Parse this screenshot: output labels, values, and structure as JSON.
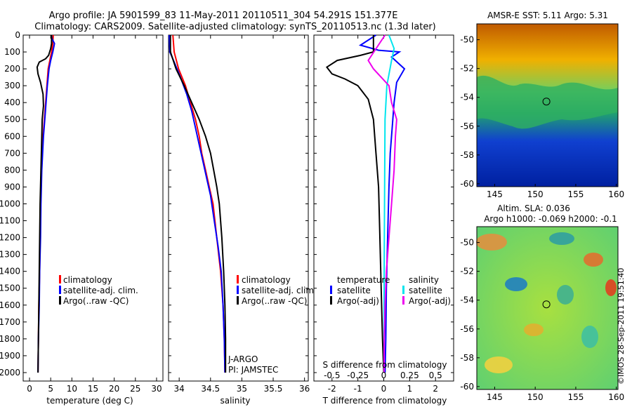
{
  "header": {
    "line1": "Argo profile: JA 5901599_83 11-May-2011 20110511_304 54.291S 151.377E",
    "line2": "Climatology: CARS2009. Satellite-adjusted climatology: synTS_20110513.nc (1.3d later)"
  },
  "colors": {
    "climatology": "#ff0000",
    "satellite": "#0000ff",
    "argo": "#000000",
    "salinity_sat": "#00e5ee",
    "salinity_argo": "#ee00ee"
  },
  "chart_data": [
    {
      "type": "line",
      "xlabel": "temperature (deg C)",
      "xticks": [
        0,
        5,
        10,
        15,
        20,
        25,
        30
      ],
      "xlim": [
        -1.5,
        31.5
      ],
      "ylim": [
        0,
        2050
      ],
      "yticks": [
        0,
        100,
        200,
        300,
        400,
        500,
        600,
        700,
        800,
        900,
        1000,
        1100,
        1200,
        1300,
        1400,
        1500,
        1600,
        1700,
        1800,
        1900,
        2000
      ],
      "legend": [
        "climatology",
        "satellite-adj. clim.",
        "Argo(..raw -QC)"
      ],
      "series": [
        {
          "name": "climatology",
          "color": "red",
          "points": [
            [
              5.6,
              0
            ],
            [
              5.5,
              50
            ],
            [
              5.2,
              100
            ],
            [
              4.8,
              150
            ],
            [
              4.4,
              200
            ],
            [
              4.1,
              300
            ],
            [
              3.8,
              400
            ],
            [
              3.5,
              500
            ],
            [
              3.2,
              600
            ],
            [
              3.0,
              700
            ],
            [
              2.8,
              800
            ],
            [
              2.7,
              900
            ],
            [
              2.6,
              1000
            ],
            [
              2.5,
              1200
            ],
            [
              2.4,
              1400
            ],
            [
              2.2,
              1600
            ],
            [
              2.1,
              1800
            ],
            [
              2.0,
              2000
            ]
          ]
        },
        {
          "name": "satellite-adj. clim.",
          "color": "blue",
          "points": [
            [
              5.2,
              0
            ],
            [
              5.3,
              20
            ],
            [
              5.9,
              50
            ],
            [
              5.5,
              100
            ],
            [
              5.0,
              150
            ],
            [
              4.6,
              200
            ],
            [
              4.2,
              300
            ],
            [
              3.9,
              400
            ],
            [
              3.6,
              500
            ],
            [
              3.3,
              600
            ],
            [
              3.1,
              700
            ],
            [
              2.9,
              800
            ],
            [
              2.8,
              900
            ],
            [
              2.7,
              1000
            ],
            [
              2.6,
              1200
            ],
            [
              2.4,
              1400
            ],
            [
              2.3,
              1600
            ],
            [
              2.1,
              1800
            ],
            [
              2.0,
              2000
            ]
          ]
        },
        {
          "name": "Argo(..raw -QC)",
          "color": "black",
          "points": [
            [
              5.2,
              0
            ],
            [
              5.2,
              50
            ],
            [
              5.0,
              80
            ],
            [
              4.5,
              120
            ],
            [
              3.8,
              140
            ],
            [
              2.3,
              160
            ],
            [
              1.8,
              190
            ],
            [
              2.0,
              230
            ],
            [
              2.6,
              280
            ],
            [
              3.2,
              350
            ],
            [
              3.3,
              420
            ],
            [
              3.0,
              500
            ],
            [
              2.9,
              600
            ],
            [
              2.8,
              700
            ],
            [
              2.7,
              800
            ],
            [
              2.6,
              900
            ],
            [
              2.5,
              1000
            ],
            [
              2.4,
              1200
            ],
            [
              2.3,
              1400
            ],
            [
              2.2,
              1600
            ],
            [
              2.1,
              1800
            ],
            [
              2.0,
              2000
            ]
          ]
        }
      ]
    },
    {
      "type": "line",
      "xlabel": "salinity",
      "xticks": [
        34,
        34.5,
        35,
        35.5,
        36
      ],
      "xlim": [
        33.83,
        36.06
      ],
      "ylim": [
        0,
        2050
      ],
      "legend": [
        "climatology",
        "satellite-adj. clim.",
        "Argo(..raw -QC)"
      ],
      "annotations": [
        "J-ARGO",
        "PI: JAMSTEC"
      ],
      "series": [
        {
          "name": "climatology",
          "color": "red",
          "points": [
            [
              33.9,
              0
            ],
            [
              33.92,
              100
            ],
            [
              33.99,
              200
            ],
            [
              34.1,
              300
            ],
            [
              34.18,
              400
            ],
            [
              34.26,
              500
            ],
            [
              34.32,
              600
            ],
            [
              34.36,
              700
            ],
            [
              34.42,
              800
            ],
            [
              34.48,
              900
            ],
            [
              34.54,
              1000
            ],
            [
              34.6,
              1200
            ],
            [
              34.66,
              1400
            ],
            [
              34.7,
              1600
            ],
            [
              34.72,
              1800
            ],
            [
              34.73,
              2000
            ]
          ]
        },
        {
          "name": "satellite-adj. clim.",
          "color": "blue",
          "points": [
            [
              33.84,
              0
            ],
            [
              33.85,
              100
            ],
            [
              33.91,
              150
            ],
            [
              34.02,
              250
            ],
            [
              34.12,
              350
            ],
            [
              34.2,
              450
            ],
            [
              34.26,
              550
            ],
            [
              34.32,
              650
            ],
            [
              34.38,
              750
            ],
            [
              34.44,
              850
            ],
            [
              34.5,
              950
            ],
            [
              34.56,
              1100
            ],
            [
              34.62,
              1250
            ],
            [
              34.67,
              1400
            ],
            [
              34.7,
              1600
            ],
            [
              34.72,
              1800
            ],
            [
              34.73,
              2000
            ]
          ]
        },
        {
          "name": "Argo(..raw -QC)",
          "color": "black",
          "points": [
            [
              33.86,
              0
            ],
            [
              33.86,
              100
            ],
            [
              33.95,
              200
            ],
            [
              34.08,
              300
            ],
            [
              34.2,
              400
            ],
            [
              34.32,
              500
            ],
            [
              34.42,
              600
            ],
            [
              34.5,
              700
            ],
            [
              34.55,
              800
            ],
            [
              34.6,
              900
            ],
            [
              34.64,
              1000
            ],
            [
              34.68,
              1200
            ],
            [
              34.71,
              1400
            ],
            [
              34.73,
              1600
            ],
            [
              34.74,
              1800
            ],
            [
              34.74,
              2000
            ]
          ]
        }
      ]
    },
    {
      "type": "line",
      "xlabel": "T difference from climatology",
      "xlabel_top": "S difference from climatology",
      "xticks": [
        -2,
        -1,
        0,
        1,
        2
      ],
      "xticks_top": [
        -0.5,
        -0.25,
        0,
        0.25,
        0.5
      ],
      "xlim": [
        -2.7,
        2.7
      ],
      "ylim": [
        0,
        2050
      ],
      "legend_temperature": [
        "temperature",
        "satellite",
        "Argo(-adj)"
      ],
      "legend_salinity": [
        "salinity",
        "satellite",
        "Argo(-adj)"
      ],
      "series": [
        {
          "name": "temperature satellite",
          "color": "blue",
          "points": [
            [
              -0.3,
              0
            ],
            [
              -0.9,
              60
            ],
            [
              -0.2,
              90
            ],
            [
              0.6,
              100
            ],
            [
              0.3,
              130
            ],
            [
              0.8,
              200
            ],
            [
              0.5,
              280
            ],
            [
              0.4,
              400
            ],
            [
              0.35,
              500
            ],
            [
              0.25,
              700
            ],
            [
              0.2,
              900
            ],
            [
              0.15,
              1200
            ],
            [
              0.1,
              1500
            ],
            [
              0.08,
              1800
            ],
            [
              0.05,
              2000
            ]
          ]
        },
        {
          "name": "temperature Argo(-adj)",
          "color": "black",
          "points": [
            [
              -0.4,
              0
            ],
            [
              -0.4,
              100
            ],
            [
              -0.9,
              120
            ],
            [
              -1.8,
              150
            ],
            [
              -2.2,
              190
            ],
            [
              -2.0,
              230
            ],
            [
              -1.5,
              260
            ],
            [
              -1.0,
              300
            ],
            [
              -0.6,
              380
            ],
            [
              -0.4,
              500
            ],
            [
              -0.3,
              700
            ],
            [
              -0.2,
              900
            ],
            [
              -0.15,
              1200
            ],
            [
              -0.1,
              1500
            ],
            [
              -0.05,
              1800
            ],
            [
              0.0,
              2000
            ]
          ]
        },
        {
          "name": "salinity satellite",
          "color": "cyan",
          "points": [
            [
              0.2,
              0
            ],
            [
              0.4,
              80
            ],
            [
              0.3,
              150
            ],
            [
              0.12,
              300
            ],
            [
              0.05,
              500
            ],
            [
              0.04,
              700
            ],
            [
              0.03,
              1000
            ],
            [
              0.02,
              1300
            ],
            [
              0.01,
              1600
            ],
            [
              0.01,
              2000
            ]
          ]
        },
        {
          "name": "salinity Argo(-adj)",
          "color": "magenta",
          "points": [
            [
              0.05,
              0
            ],
            [
              -0.6,
              150
            ],
            [
              -0.4,
              200
            ],
            [
              0.2,
              300
            ],
            [
              0.3,
              400
            ],
            [
              0.5,
              500
            ],
            [
              0.45,
              600
            ],
            [
              0.4,
              800
            ],
            [
              0.3,
              1000
            ],
            [
              0.2,
              1200
            ],
            [
              0.1,
              1400
            ],
            [
              0.05,
              1600
            ],
            [
              0.02,
              1800
            ],
            [
              0.01,
              2000
            ]
          ]
        }
      ]
    },
    {
      "type": "heatmap",
      "title": "AMSR-E SST: 5.11  Argo: 5.31",
      "xticks": [
        145,
        150,
        155,
        160
      ],
      "yticks": [
        -50,
        -52,
        -54,
        -56,
        -58,
        -60
      ],
      "xlim": [
        142.8,
        160.2
      ],
      "ylim": [
        -60.2,
        -48.9
      ],
      "argo_position": [
        151.377,
        -54.291
      ]
    },
    {
      "type": "heatmap",
      "title": "Altim. SLA: 0.036",
      "subtitle": "Argo h1000: -0.069 h2000: -0.1",
      "xticks": [
        145,
        150,
        155,
        160
      ],
      "yticks": [
        -50,
        -52,
        -54,
        -56,
        -58,
        -60
      ],
      "xlim": [
        142.8,
        160.2
      ],
      "ylim": [
        -60.2,
        -48.9
      ],
      "argo_position": [
        151.377,
        -54.291
      ]
    }
  ],
  "credit": "©IMOS 28-Sep-2011 19:51:40"
}
